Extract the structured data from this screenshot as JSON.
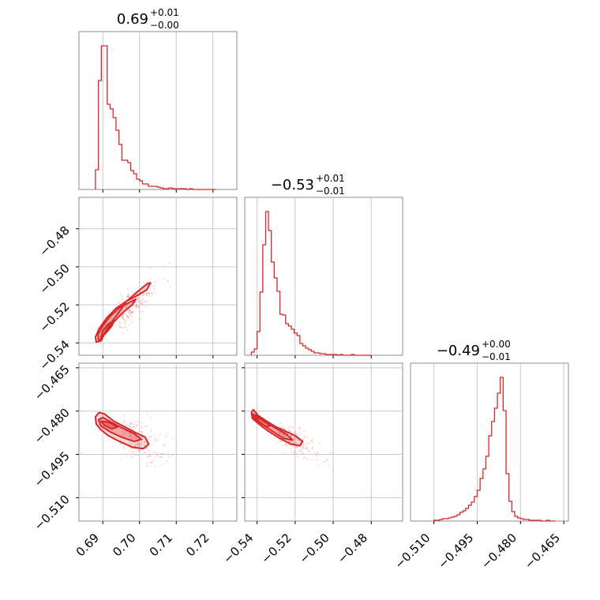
{
  "chart_data": {
    "type": "corner",
    "color": "#d62728",
    "parameters": [
      {
        "range": [
          0.6835,
          0.7265
        ],
        "ticks": [
          0.69,
          0.7,
          0.71,
          0.72
        ],
        "tick_labels": [
          "0.69",
          "0.70",
          "0.71",
          "0.72"
        ],
        "title": {
          "value": "0.69",
          "plus": "+0.01",
          "minus": "−0.00"
        },
        "hist_bins": [
          0.688,
          0.6888,
          0.6896,
          0.6904,
          0.6912,
          0.692,
          0.6928,
          0.6936,
          0.6944,
          0.6952,
          0.696,
          0.6968,
          0.6976,
          0.6984,
          0.6992,
          0.7,
          0.7008,
          0.7016,
          0.7024,
          0.7032,
          0.704,
          0.7048,
          0.7056,
          0.7064,
          0.7072,
          0.708,
          0.7088,
          0.7096,
          0.7104,
          0.7112,
          0.712,
          0.7128,
          0.7136,
          0.7144,
          0.7152,
          0.716,
          0.7168,
          0.7176,
          0.7184,
          0.7192,
          0.72,
          0.7208
        ],
        "hist_values": [
          25,
          138,
          182,
          182,
          108,
          102,
          91,
          75,
          57,
          37,
          37,
          34,
          24,
          20,
          13,
          11,
          7,
          7,
          4,
          4,
          4,
          3,
          2,
          1,
          1,
          2,
          1,
          1,
          1,
          1,
          1,
          0,
          1,
          0,
          0,
          0,
          0,
          0,
          0,
          0,
          0
        ]
      },
      {
        "range": [
          -0.5465,
          -0.4635
        ],
        "ticks": [
          -0.54,
          -0.52,
          -0.5,
          -0.48
        ],
        "tick_labels": [
          "−0.54",
          "−0.52",
          "−0.50",
          "−0.48"
        ],
        "title": {
          "value": "−0.53",
          "plus": "+0.01",
          "minus": "−0.01"
        },
        "hist_bins": [
          -0.543,
          -0.5415,
          -0.54,
          -0.5385,
          -0.537,
          -0.5355,
          -0.534,
          -0.5325,
          -0.531,
          -0.5295,
          -0.528,
          -0.5265,
          -0.525,
          -0.5235,
          -0.522,
          -0.5205,
          -0.519,
          -0.5175,
          -0.516,
          -0.5145,
          -0.513,
          -0.5115,
          -0.51,
          -0.5085,
          -0.507,
          -0.5055,
          -0.504,
          -0.5025,
          -0.501,
          -0.4995,
          -0.498,
          -0.4965,
          -0.495,
          -0.4935,
          -0.492,
          -0.4905,
          -0.489,
          -0.4875,
          -0.486,
          -0.4845,
          -0.483,
          -0.4815,
          -0.48
        ],
        "hist_values": [
          4,
          8,
          30,
          80,
          140,
          182,
          158,
          118,
          98,
          81,
          52,
          51,
          40,
          37,
          33,
          28,
          25,
          15,
          12,
          9,
          7,
          5,
          3,
          3,
          2,
          2,
          1,
          1,
          1,
          1,
          0,
          1,
          0,
          0,
          0,
          1,
          0,
          0,
          0,
          0,
          0,
          0
        ]
      },
      {
        "range": [
          -0.5181,
          -0.4634
        ],
        "ticks": [
          -0.51,
          -0.495,
          -0.48,
          -0.465
        ],
        "tick_labels": [
          "−0.510",
          "−0.495",
          "−0.480",
          "−0.465"
        ],
        "title": {
          "value": "−0.49",
          "plus": "+0.00",
          "minus": "−0.01"
        },
        "hist_bins": [
          -0.51,
          -0.509,
          -0.508,
          -0.507,
          -0.506,
          -0.505,
          -0.504,
          -0.503,
          -0.502,
          -0.501,
          -0.5,
          -0.499,
          -0.498,
          -0.497,
          -0.496,
          -0.495,
          -0.494,
          -0.493,
          -0.492,
          -0.491,
          -0.49,
          -0.489,
          -0.488,
          -0.487,
          -0.486,
          -0.485,
          -0.484,
          -0.483,
          -0.482,
          -0.481,
          -0.48,
          -0.479,
          -0.478,
          -0.477,
          -0.476,
          -0.475,
          -0.474,
          -0.473,
          -0.472,
          -0.471,
          -0.47,
          -0.469,
          -0.468
        ],
        "hist_values": [
          1,
          1,
          2,
          3,
          3,
          4,
          5,
          6,
          8,
          11,
          13,
          16,
          20,
          24,
          31,
          39,
          54,
          66,
          82,
          108,
          126,
          143,
          162,
          182,
          140,
          60,
          25,
          12,
          6,
          4,
          3,
          2,
          2,
          1,
          1,
          1,
          1,
          0,
          0,
          1,
          0,
          0
        ]
      }
    ],
    "correlations": [
      {
        "x": 0,
        "y": 1,
        "mean": [
          0.6935,
          -0.528
        ],
        "sd": [
          0.0045,
          0.009
        ],
        "rho": 0.85
      },
      {
        "x": 0,
        "y": 2,
        "mean": [
          0.6945,
          -0.4875
        ],
        "sd": [
          0.0045,
          0.004
        ],
        "rho": -0.55
      },
      {
        "x": 1,
        "y": 2,
        "mean": [
          -0.53,
          -0.487
        ],
        "sd": [
          0.009,
          0.0038
        ],
        "rho": -0.8
      }
    ],
    "contours": [
      {
        "panel": "1-0",
        "levels": [
          [
            [
              0.6882,
              -0.5395
            ],
            [
              0.688,
              -0.537
            ],
            [
              0.689,
              -0.5325
            ],
            [
              0.691,
              -0.527
            ],
            [
              0.6935,
              -0.522
            ],
            [
              0.6965,
              -0.518
            ],
            [
              0.6995,
              -0.515
            ],
            [
              0.702,
              -0.512
            ],
            [
              0.703,
              -0.5085
            ],
            [
              0.7022,
              -0.5088
            ],
            [
              0.6995,
              -0.513
            ],
            [
              0.6965,
              -0.518
            ],
            [
              0.694,
              -0.525
            ],
            [
              0.692,
              -0.53
            ],
            [
              0.6905,
              -0.535
            ],
            [
              0.6895,
              -0.539
            ],
            [
              0.6882,
              -0.5395
            ]
          ],
          [
            [
              0.6888,
              -0.5385
            ],
            [
              0.6887,
              -0.5355
            ],
            [
              0.69,
              -0.531
            ],
            [
              0.692,
              -0.526
            ],
            [
              0.6945,
              -0.5215
            ],
            [
              0.697,
              -0.519
            ],
            [
              0.699,
              -0.517
            ],
            [
              0.698,
              -0.52
            ],
            [
              0.6955,
              -0.524
            ],
            [
              0.693,
              -0.529
            ],
            [
              0.691,
              -0.534
            ],
            [
              0.6895,
              -0.538
            ],
            [
              0.6888,
              -0.5385
            ]
          ],
          [
            [
              0.6895,
              -0.537
            ],
            [
              0.69,
              -0.5335
            ],
            [
              0.6915,
              -0.53
            ],
            [
              0.693,
              -0.5285
            ],
            [
              0.6925,
              -0.531
            ],
            [
              0.691,
              -0.5345
            ],
            [
              0.6895,
              -0.537
            ]
          ]
        ]
      },
      {
        "panel": "2-0",
        "levels": [
          [
            [
              0.688,
              -0.482
            ],
            [
              0.689,
              -0.4805
            ],
            [
              0.6905,
              -0.481
            ],
            [
              0.693,
              -0.4835
            ],
            [
              0.696,
              -0.4855
            ],
            [
              0.699,
              -0.4875
            ],
            [
              0.7015,
              -0.489
            ],
            [
              0.7025,
              -0.4915
            ],
            [
              0.701,
              -0.493
            ],
            [
              0.698,
              -0.4925
            ],
            [
              0.6945,
              -0.4905
            ],
            [
              0.6915,
              -0.4885
            ],
            [
              0.6895,
              -0.4865
            ],
            [
              0.6882,
              -0.4845
            ],
            [
              0.688,
              -0.482
            ]
          ],
          [
            [
              0.6888,
              -0.483
            ],
            [
              0.69,
              -0.4822
            ],
            [
              0.6925,
              -0.484
            ],
            [
              0.6955,
              -0.486
            ],
            [
              0.6985,
              -0.4878
            ],
            [
              0.7005,
              -0.4898
            ],
            [
              0.6985,
              -0.4905
            ],
            [
              0.695,
              -0.489
            ],
            [
              0.692,
              -0.4872
            ],
            [
              0.6895,
              -0.4852
            ],
            [
              0.6888,
              -0.483
            ]
          ],
          [
            [
              0.6895,
              -0.4835
            ],
            [
              0.6915,
              -0.4838
            ],
            [
              0.694,
              -0.4855
            ],
            [
              0.6925,
              -0.4862
            ],
            [
              0.6905,
              -0.485
            ],
            [
              0.6895,
              -0.4835
            ]
          ]
        ]
      },
      {
        "panel": "2-1",
        "levels": [
          [
            [
              -0.543,
              -0.4805
            ],
            [
              -0.542,
              -0.4795
            ],
            [
              -0.5395,
              -0.4815
            ],
            [
              -0.535,
              -0.4835
            ],
            [
              -0.53,
              -0.4855
            ],
            [
              -0.525,
              -0.487
            ],
            [
              -0.52,
              -0.4885
            ],
            [
              -0.516,
              -0.4905
            ],
            [
              -0.5175,
              -0.492
            ],
            [
              -0.522,
              -0.4915
            ],
            [
              -0.528,
              -0.4895
            ],
            [
              -0.534,
              -0.487
            ],
            [
              -0.539,
              -0.4845
            ],
            [
              -0.5425,
              -0.4825
            ],
            [
              -0.543,
              -0.4805
            ]
          ],
          [
            [
              -0.5422,
              -0.481
            ],
            [
              -0.5395,
              -0.4818
            ],
            [
              -0.535,
              -0.484
            ],
            [
              -0.53,
              -0.486
            ],
            [
              -0.5245,
              -0.488
            ],
            [
              -0.5215,
              -0.49
            ],
            [
              -0.526,
              -0.4895
            ],
            [
              -0.532,
              -0.487
            ],
            [
              -0.5375,
              -0.4845
            ],
            [
              -0.5415,
              -0.4825
            ],
            [
              -0.5422,
              -0.481
            ]
          ],
          [
            [
              -0.541,
              -0.4818
            ],
            [
              -0.537,
              -0.4832
            ],
            [
              -0.533,
              -0.485
            ],
            [
              -0.535,
              -0.4855
            ],
            [
              -0.539,
              -0.4838
            ],
            [
              -0.541,
              -0.4818
            ]
          ]
        ]
      }
    ]
  }
}
